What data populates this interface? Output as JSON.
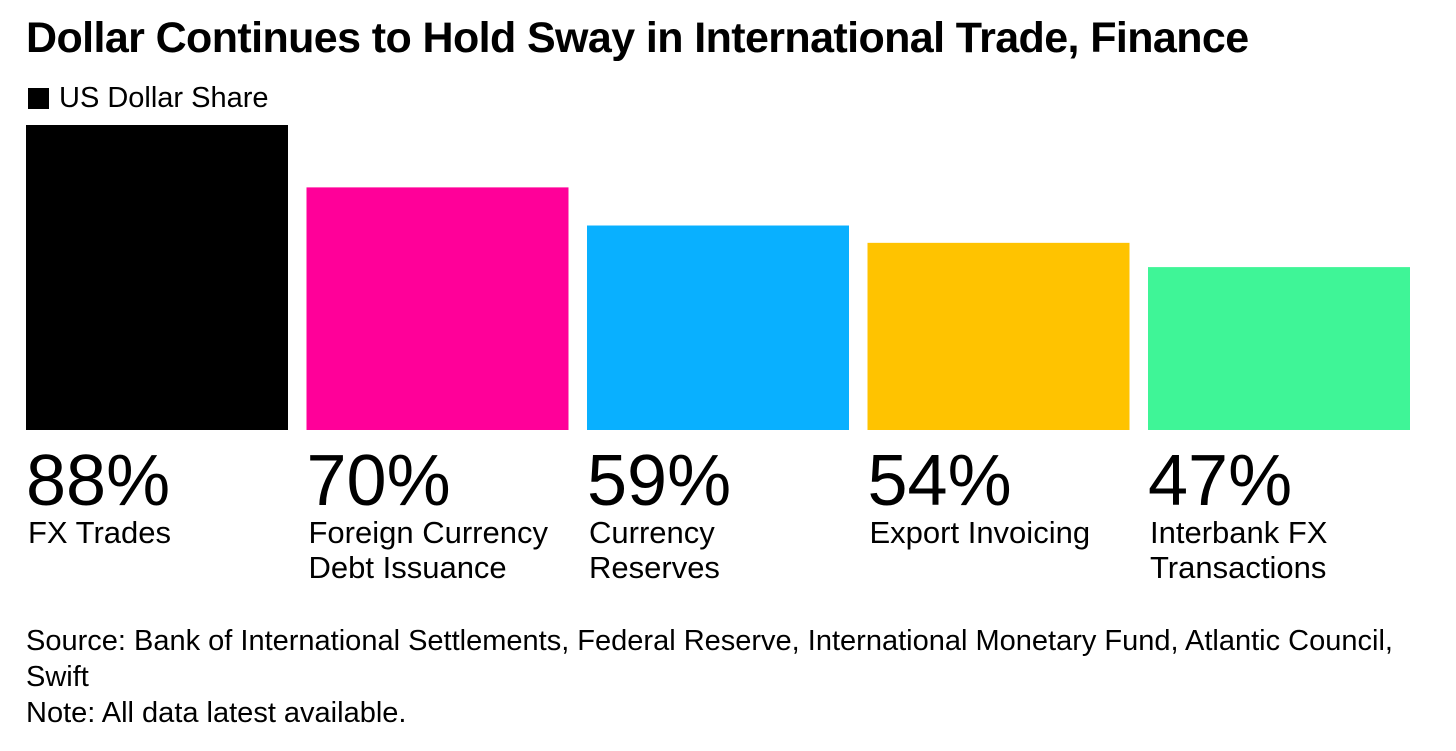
{
  "chart_data": {
    "type": "bar",
    "title": "Dollar Continues to Hold Sway in International Trade, Finance",
    "legend": [
      {
        "label": "US Dollar Share",
        "color": "#000000"
      }
    ],
    "categories": [
      [
        "FX Trades"
      ],
      [
        "Foreign Currency",
        "Debt Issuance"
      ],
      [
        "Currency",
        "Reserves"
      ],
      [
        "Export Invoicing"
      ],
      [
        "Interbank FX",
        "Transactions"
      ]
    ],
    "values": [
      88,
      70,
      59,
      54,
      47
    ],
    "value_labels": [
      "88%",
      "70%",
      "59%",
      "54%",
      "47%"
    ],
    "colors": [
      "#000000",
      "#ff0099",
      "#09b0ff",
      "#ffc300",
      "#3ff597"
    ],
    "ylim": [
      0,
      88
    ],
    "grid": false,
    "legend_position": "top-left"
  },
  "footer": {
    "source": "Source: Bank of International Settlements, Federal Reserve, International Monetary Fund, Atlantic Council, Swift",
    "note": "Note: All data latest available."
  }
}
